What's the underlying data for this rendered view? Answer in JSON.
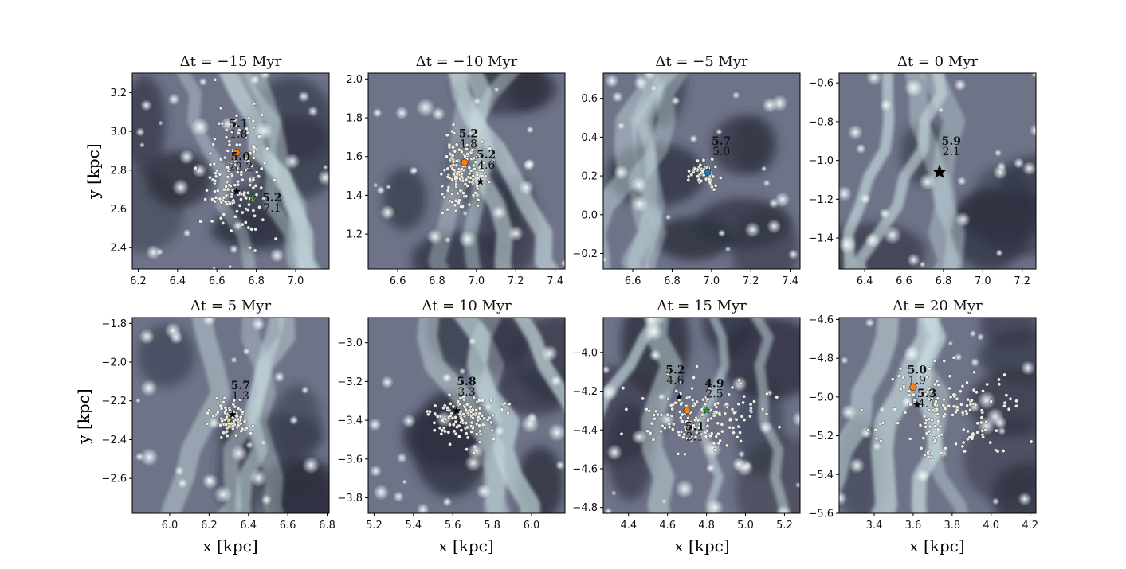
{
  "figure": {
    "ylabel": "y [kpc]",
    "xlabel": "x [kpc]"
  },
  "chart_data": [
    {
      "type": "scatter",
      "title": "Δt = −15 Myr",
      "xlim": [
        6.17,
        7.17
      ],
      "ylim": [
        2.29,
        3.3
      ],
      "xticks": [
        6.2,
        6.4,
        6.6,
        6.8,
        7.0
      ],
      "xtick_labels": [
        "6.2",
        "6.4",
        "6.6",
        "6.8",
        "7.0"
      ],
      "yticks": [
        2.4,
        2.6,
        2.8,
        3.0,
        3.2
      ],
      "ytick_labels": [
        "2.4",
        "2.6",
        "2.8",
        "3.0",
        "3.2"
      ],
      "markers": [
        {
          "kind": "dot",
          "color": "#ff7f0e",
          "x": 6.7,
          "y": 2.89
        },
        {
          "kind": "star",
          "color": "#000000",
          "x": 6.7,
          "y": 2.69
        },
        {
          "kind": "star",
          "color": "#2ca02c",
          "x": 6.78,
          "y": 2.66
        }
      ],
      "annotations": [
        {
          "bold": "5.1",
          "normal": "1.8",
          "x": 6.71,
          "y": 3.02
        },
        {
          "bold": "5.0",
          "normal": "28.2",
          "x": 6.72,
          "y": 2.85
        },
        {
          "bold": "5.2",
          "normal": "7.1",
          "x": 6.88,
          "y": 2.64
        }
      ],
      "clusters": [
        {
          "x": 6.7,
          "y": 2.75,
          "sx": 0.08,
          "sy": 0.16,
          "n": 170
        }
      ]
    },
    {
      "type": "scatter",
      "title": "Δt = −10 Myr",
      "xlim": [
        6.45,
        7.45
      ],
      "ylim": [
        1.02,
        2.03
      ],
      "xticks": [
        6.6,
        6.8,
        7.0,
        7.2,
        7.4
      ],
      "xtick_labels": [
        "6.6",
        "6.8",
        "7.0",
        "7.2",
        "7.4"
      ],
      "yticks": [
        1.2,
        1.4,
        1.6,
        1.8,
        2.0
      ],
      "ytick_labels": [
        "1.2",
        "1.4",
        "1.6",
        "1.8",
        "2.0"
      ],
      "markers": [
        {
          "kind": "dot",
          "color": "#ff7f0e",
          "x": 6.94,
          "y": 1.57
        },
        {
          "kind": "star",
          "color": "#000000",
          "x": 7.02,
          "y": 1.47
        }
      ],
      "annotations": [
        {
          "bold": "5.2",
          "normal": "1.8",
          "x": 6.96,
          "y": 1.7
        },
        {
          "bold": "5.2",
          "normal": "4.6",
          "x": 7.05,
          "y": 1.59
        }
      ],
      "clusters": [
        {
          "x": 6.93,
          "y": 1.52,
          "sx": 0.06,
          "sy": 0.09,
          "n": 150
        }
      ]
    },
    {
      "type": "scatter",
      "title": "Δt = −5 Myr",
      "xlim": [
        6.45,
        7.45
      ],
      "ylim": [
        -0.28,
        0.73
      ],
      "xticks": [
        6.6,
        6.8,
        7.0,
        7.2,
        7.4
      ],
      "xtick_labels": [
        "6.6",
        "6.8",
        "7.0",
        "7.2",
        "7.4"
      ],
      "yticks": [
        -0.2,
        0.0,
        0.2,
        0.4,
        0.6
      ],
      "ytick_labels": [
        "−0.2",
        "0.0",
        "0.2",
        "0.4",
        "0.6"
      ],
      "markers": [
        {
          "kind": "dot",
          "color": "#1f77b4",
          "x": 6.98,
          "y": 0.22
        }
      ],
      "annotations": [
        {
          "bold": "5.7",
          "normal": "5.0",
          "x": 7.05,
          "y": 0.36
        }
      ],
      "clusters": [
        {
          "x": 6.96,
          "y": 0.21,
          "sx": 0.03,
          "sy": 0.03,
          "n": 70
        }
      ]
    },
    {
      "type": "scatter",
      "title": "Δt = 0 Myr",
      "xlim": [
        6.27,
        7.27
      ],
      "ylim": [
        -1.56,
        -0.55
      ],
      "xticks": [
        6.4,
        6.6,
        6.8,
        7.0,
        7.2
      ],
      "xtick_labels": [
        "6.4",
        "6.6",
        "6.8",
        "7.0",
        "7.2"
      ],
      "yticks": [
        -1.4,
        -1.2,
        -1.0,
        -0.8,
        -0.6
      ],
      "ytick_labels": [
        "−1.4",
        "−1.2",
        "−1.0",
        "−0.8",
        "−0.6"
      ],
      "markers": [
        {
          "kind": "bigstar",
          "color": "#000000",
          "x": 6.78,
          "y": -1.06
        }
      ],
      "annotations": [
        {
          "bold": "5.9",
          "normal": "2.1",
          "x": 6.84,
          "y": -0.92
        }
      ],
      "clusters": []
    },
    {
      "type": "scatter",
      "title": "Δt = 5 Myr",
      "xlim": [
        5.81,
        6.81
      ],
      "ylim": [
        -2.78,
        -1.77
      ],
      "xticks": [
        6.0,
        6.2,
        6.4,
        6.6,
        6.8
      ],
      "xtick_labels": [
        "6.0",
        "6.2",
        "6.4",
        "6.6",
        "6.8"
      ],
      "yticks": [
        -2.6,
        -2.4,
        -2.2,
        -2.0,
        -1.8
      ],
      "ytick_labels": [
        "−2.6",
        "−2.4",
        "−2.2",
        "−2.0",
        "−1.8"
      ],
      "markers": [
        {
          "kind": "star",
          "color": "#000000",
          "x": 6.32,
          "y": -2.27
        },
        {
          "kind": "star",
          "color": "#e6e619",
          "x": 6.3,
          "y": -2.3
        }
      ],
      "annotations": [
        {
          "bold": "5.7",
          "normal": "1.3",
          "x": 6.36,
          "y": -2.14
        }
      ],
      "clusters": [
        {
          "x": 6.31,
          "y": -2.29,
          "sx": 0.05,
          "sy": 0.04,
          "n": 90
        }
      ]
    },
    {
      "type": "scatter",
      "title": "Δt = 10 Myr",
      "xlim": [
        5.17,
        6.17
      ],
      "ylim": [
        -3.88,
        -2.87
      ],
      "xticks": [
        5.2,
        5.4,
        5.6,
        5.8,
        6.0
      ],
      "xtick_labels": [
        "5.2",
        "5.4",
        "5.6",
        "5.8",
        "6.0"
      ],
      "yticks": [
        -3.8,
        -3.6,
        -3.4,
        -3.2,
        -3.0
      ],
      "ytick_labels": [
        "−3.8",
        "−3.6",
        "−3.4",
        "−3.2",
        "−3.0"
      ],
      "markers": [
        {
          "kind": "star",
          "color": "#000000",
          "x": 5.62,
          "y": -3.35
        }
      ],
      "annotations": [
        {
          "bold": "5.8",
          "normal": "3.3",
          "x": 5.67,
          "y": -3.22
        }
      ],
      "clusters": [
        {
          "x": 5.66,
          "y": -3.38,
          "sx": 0.1,
          "sy": 0.06,
          "n": 130
        }
      ]
    },
    {
      "type": "scatter",
      "title": "Δt = 15 Myr",
      "xlim": [
        4.27,
        5.28
      ],
      "ylim": [
        -4.83,
        -3.82
      ],
      "xticks": [
        4.4,
        4.6,
        4.8,
        5.0,
        5.2
      ],
      "xtick_labels": [
        "4.4",
        "4.6",
        "4.8",
        "5.0",
        "5.2"
      ],
      "yticks": [
        -4.8,
        -4.6,
        -4.4,
        -4.2,
        -4.0
      ],
      "ytick_labels": [
        "−4.8",
        "−4.6",
        "−4.4",
        "−4.2",
        "−4.0"
      ],
      "markers": [
        {
          "kind": "star",
          "color": "#000000",
          "x": 4.66,
          "y": -4.23
        },
        {
          "kind": "dot",
          "color": "#ff7f0e",
          "x": 4.7,
          "y": -4.3
        },
        {
          "kind": "star",
          "color": "#2ca02c",
          "x": 4.8,
          "y": -4.3
        }
      ],
      "annotations": [
        {
          "bold": "5.2",
          "normal": "4.6",
          "x": 4.64,
          "y": -4.11
        },
        {
          "bold": "4.9",
          "normal": "2.5",
          "x": 4.84,
          "y": -4.18
        },
        {
          "bold": "5.1",
          "normal": "2.1",
          "x": 4.74,
          "y": -4.4
        }
      ],
      "clusters": [
        {
          "x": 4.78,
          "y": -4.33,
          "sx": 0.16,
          "sy": 0.08,
          "n": 170
        }
      ]
    },
    {
      "type": "scatter",
      "title": "Δt = 20 Myr",
      "xlim": [
        3.22,
        4.23
      ],
      "ylim": [
        -5.6,
        -4.59
      ],
      "xticks": [
        3.4,
        3.6,
        3.8,
        4.0,
        4.2
      ],
      "xtick_labels": [
        "3.4",
        "3.6",
        "3.8",
        "4.0",
        "4.2"
      ],
      "yticks": [
        -5.6,
        -5.4,
        -5.2,
        -5.0,
        -4.8,
        -4.6
      ],
      "ytick_labels": [
        "−5.6",
        "−5.4",
        "−5.2",
        "−5.0",
        "−4.8",
        "−4.6"
      ],
      "markers": [
        {
          "kind": "dot",
          "color": "#ff7f0e",
          "x": 3.6,
          "y": -4.95
        },
        {
          "kind": "star",
          "color": "#000000",
          "x": 3.62,
          "y": -5.04
        }
      ],
      "annotations": [
        {
          "bold": "5.0",
          "normal": "1.9",
          "x": 3.62,
          "y": -4.88
        },
        {
          "bold": "5.3",
          "normal": "4.1",
          "x": 3.67,
          "y": -5.0
        }
      ],
      "clusters": [
        {
          "x": 3.78,
          "y": -5.08,
          "sx": 0.16,
          "sy": 0.12,
          "n": 170
        }
      ]
    }
  ]
}
